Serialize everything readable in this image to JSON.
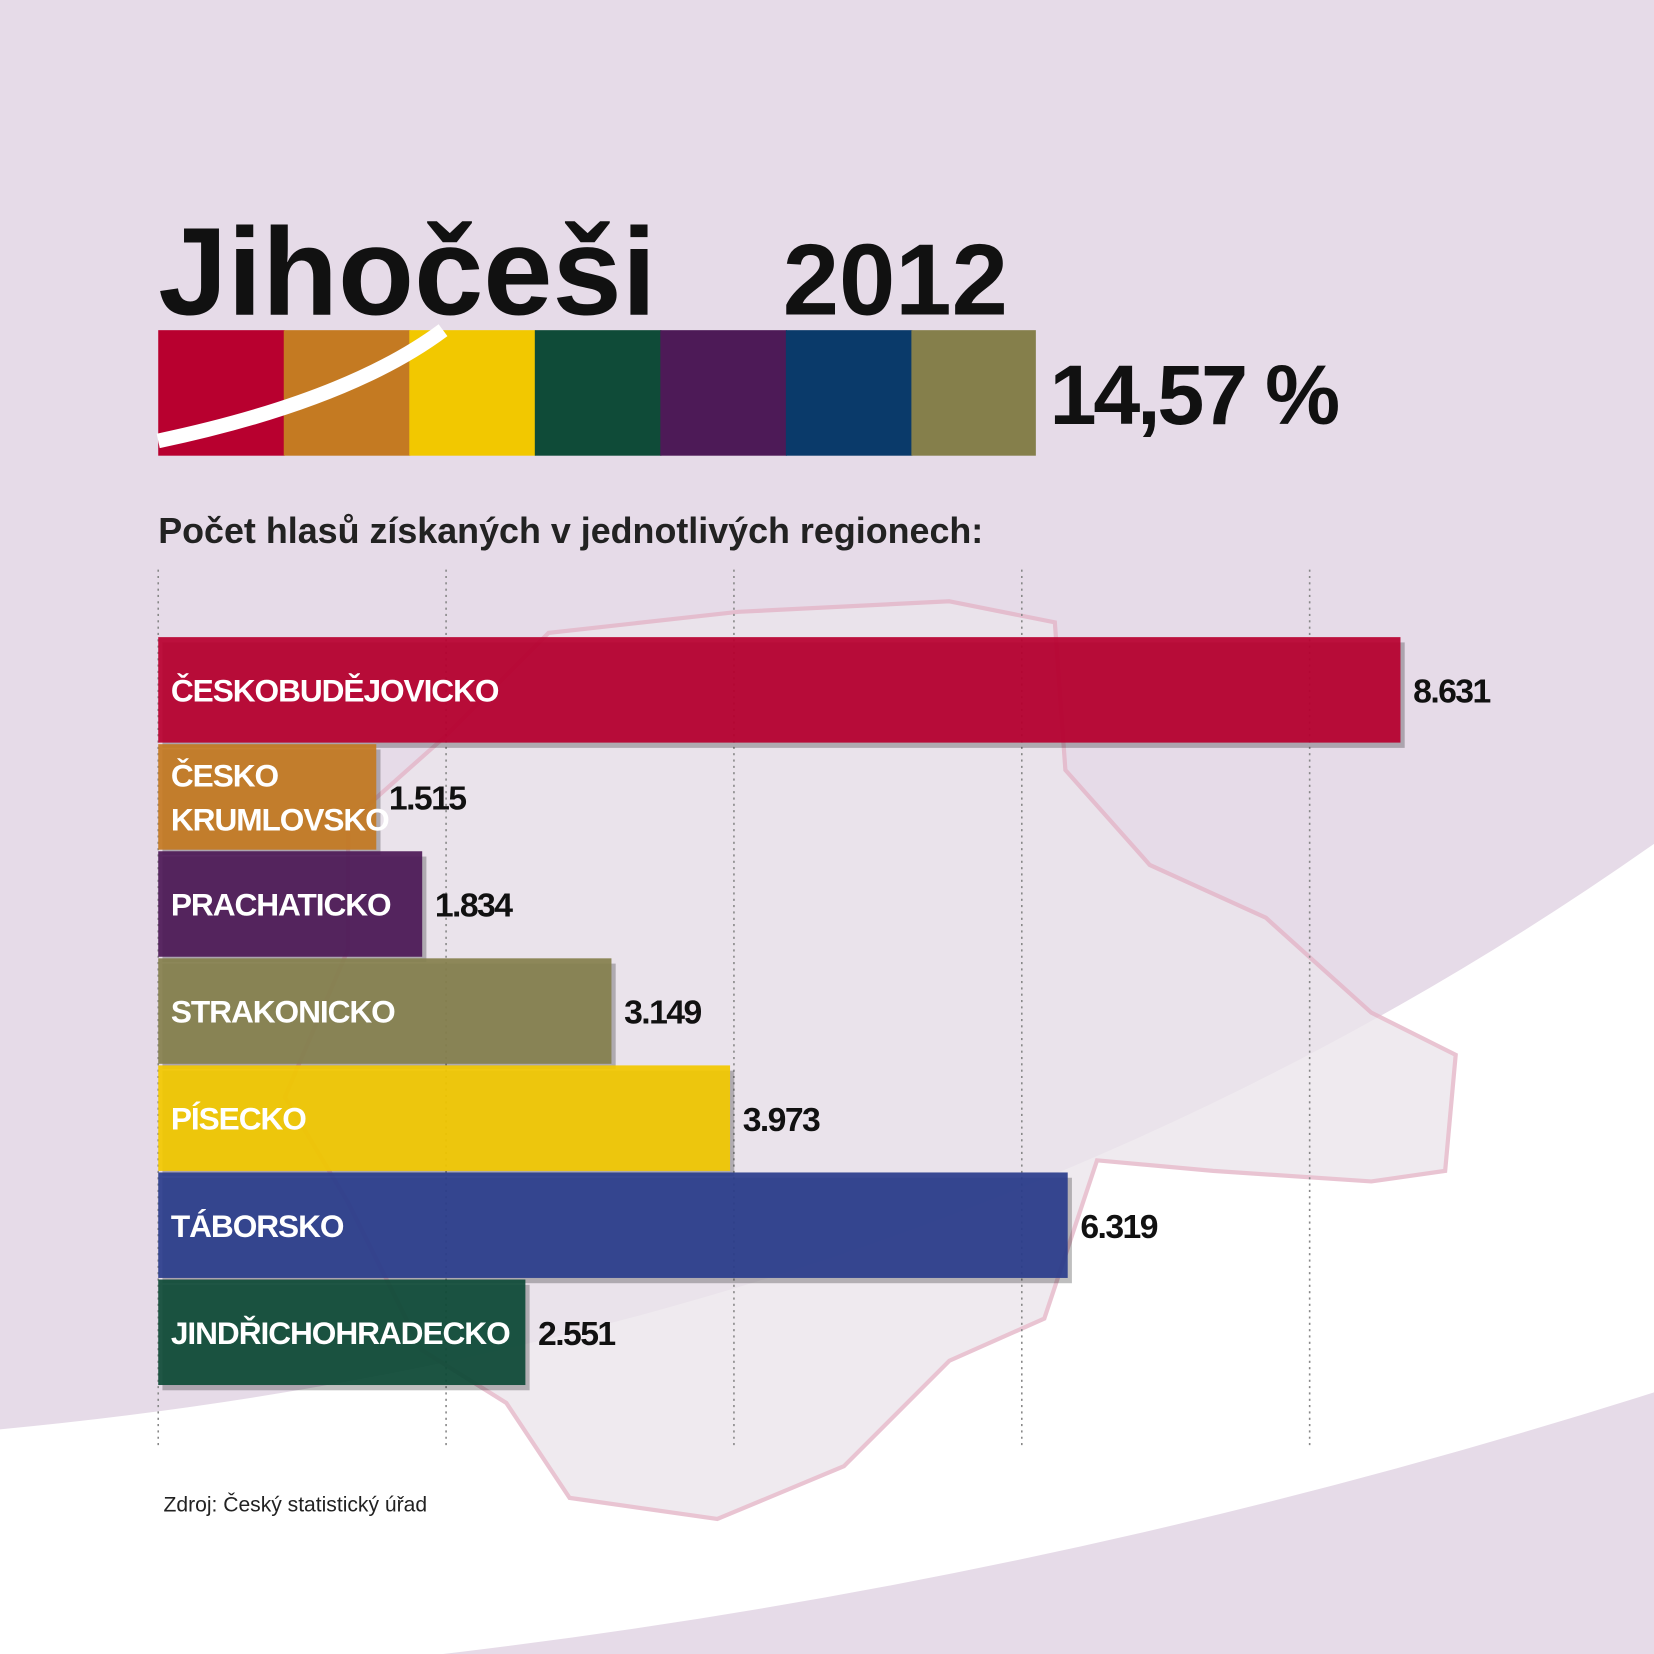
{
  "header": {
    "title": "Jihočeši",
    "year": "2012",
    "share": "14,57 %"
  },
  "chart_data": {
    "type": "hbar",
    "subtitle": "Počet hlasů získaných v jednotlivých regionech:",
    "categories": [
      "ČESKOBUDĚJOVICKO",
      "ČESKO KRUMLOVSKO",
      "PRACHATICKO",
      "STRAKONICKO",
      "PÍSECKO",
      "TÁBORSKO",
      "JINDŘICHOHRADECKO"
    ],
    "values": [
      8631,
      1515,
      1834,
      3149,
      3973,
      6319,
      2551
    ],
    "value_labels": [
      "8.631",
      "1.515",
      "1.834",
      "3.149",
      "3.973",
      "6.319",
      "2.551"
    ],
    "colors": [
      "#b8002f",
      "#c47a22",
      "#4d1a57",
      "#85804e",
      "#f2c800",
      "#2b3d8c",
      "#0f4b38"
    ],
    "xlim": [
      0,
      9000
    ],
    "xticks": [
      0,
      2000,
      4000,
      6000,
      8000
    ],
    "grid": true,
    "source": "Zdroj: Český statistický úřad"
  }
}
